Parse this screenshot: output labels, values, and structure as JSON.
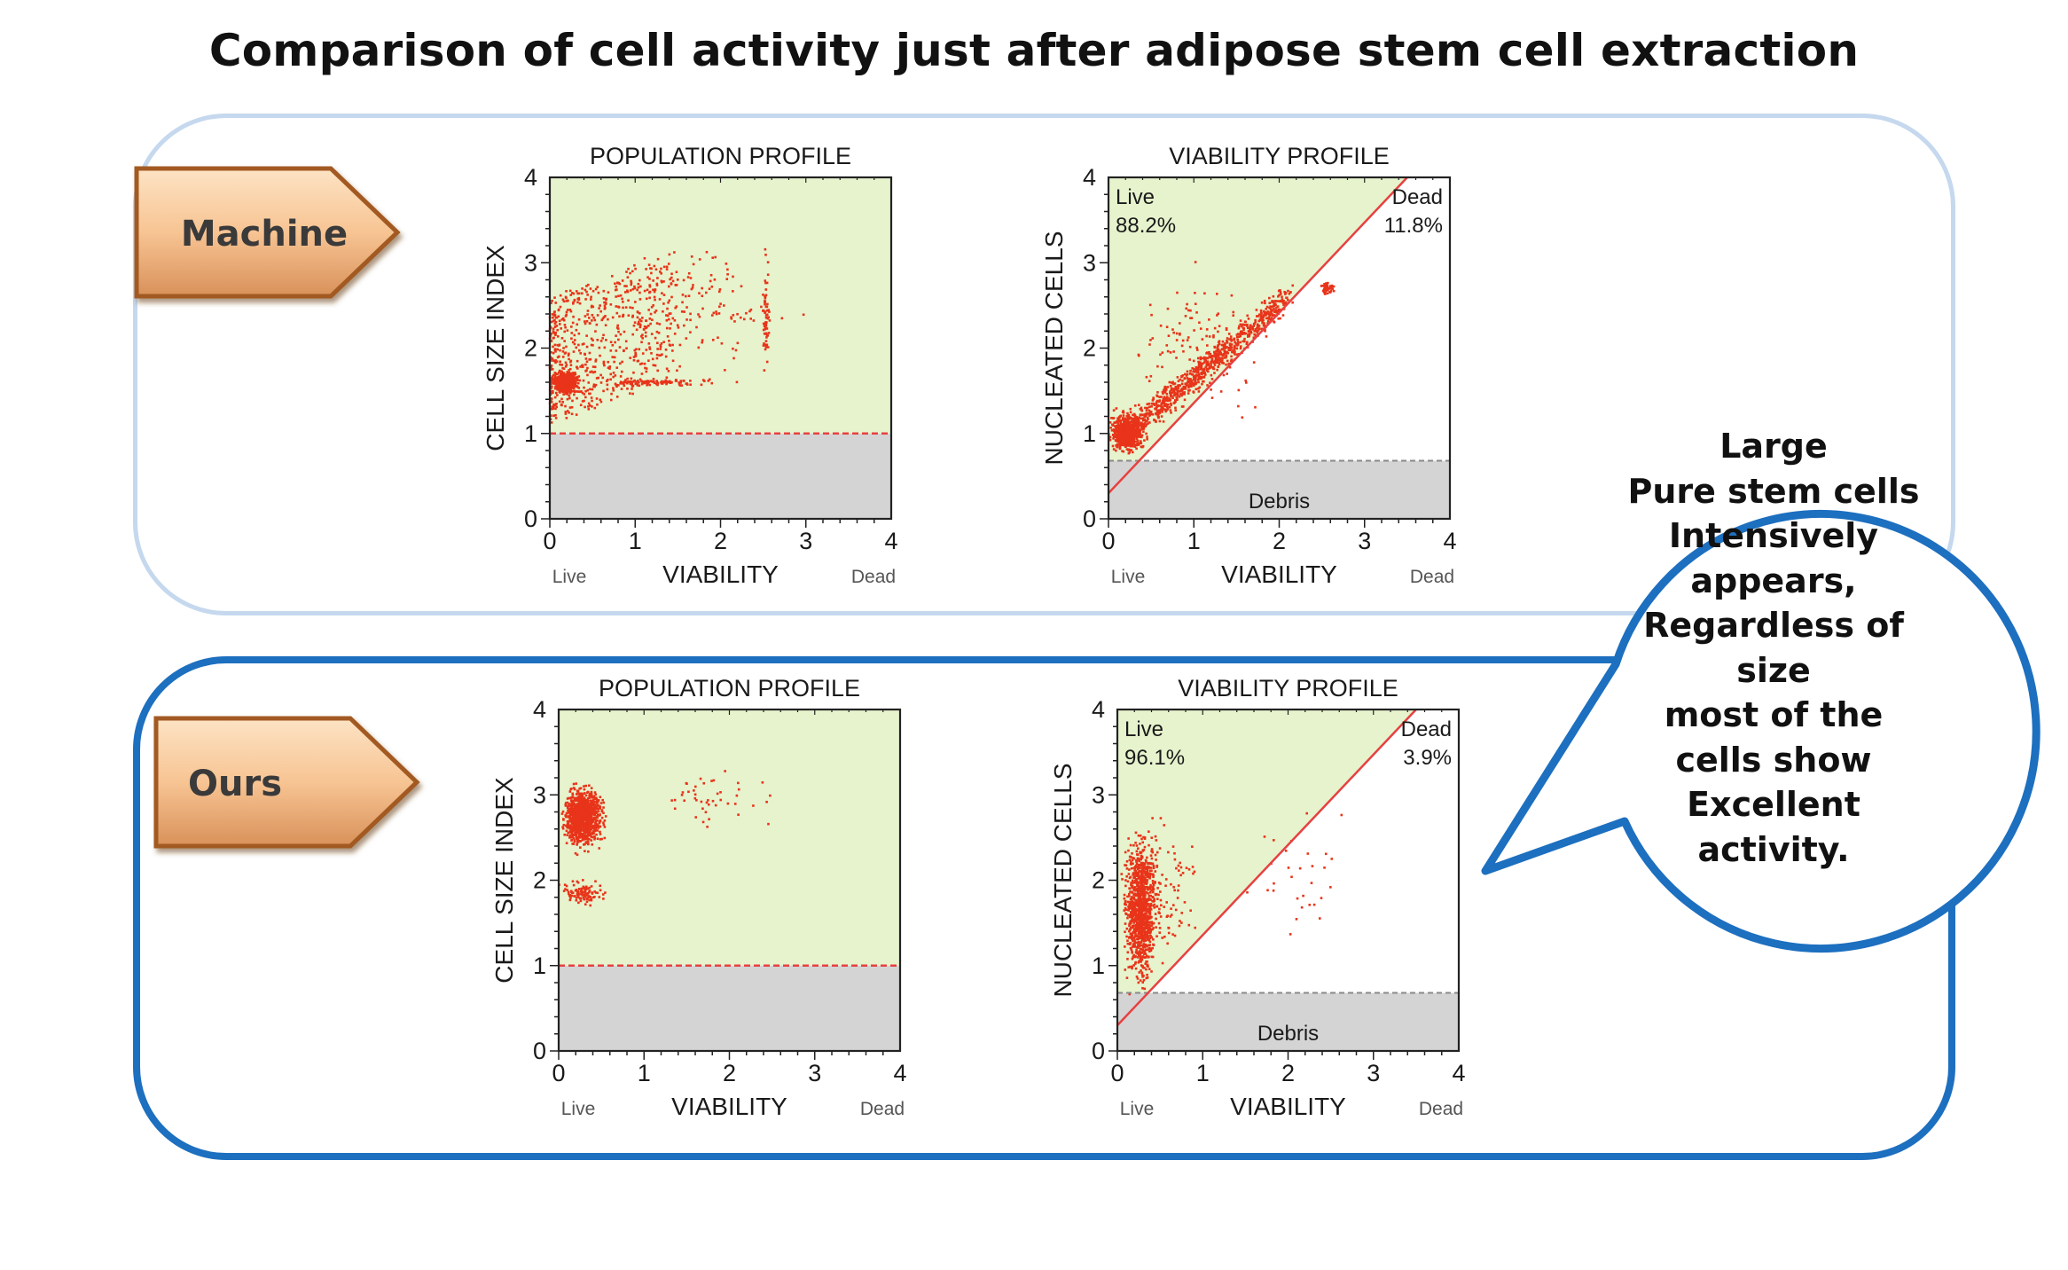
{
  "title": "Comparison of cell activity just after adipose stem cell extraction",
  "colors": {
    "plot_bg": "#e6f3cd",
    "debris_bg": "#d4d4d4",
    "point": "#e8341a",
    "gate_line": "#e84040",
    "bubble_border": "#1d6fbf"
  },
  "rows": [
    {
      "label": "Machine"
    },
    {
      "label": "Ours"
    }
  ],
  "bubble": {
    "lines": [
      "Large",
      "Pure stem cells",
      "Intensively",
      "appears,",
      "Regardless of",
      "size",
      "most of the",
      "cells show",
      "Excellent",
      "activity."
    ]
  },
  "chart_data": [
    {
      "id": "machine-population",
      "type": "scatter",
      "title": "POPULATION PROFILE",
      "xlabel": "VIABILITY",
      "ylabel": "CELL SIZE INDEX",
      "x_end_labels": {
        "left": "Live",
        "right": "Dead"
      },
      "xlim": [
        0,
        4
      ],
      "ylim": [
        0,
        4
      ],
      "xticks": [
        "0",
        "1",
        "2",
        "3",
        "4"
      ],
      "yticks": [
        "0",
        "1",
        "2",
        "3",
        "4"
      ],
      "threshold_y": 1.0,
      "clusters": [
        {
          "x": [
            0.0,
            0.35
          ],
          "y": [
            1.45,
            1.75
          ],
          "n": 700
        },
        {
          "x": [
            0.0,
            1.5
          ],
          "y": [
            1.1,
            3.1
          ],
          "n": 650,
          "trend": 0.45
        },
        {
          "x": [
            0.3,
            2.2
          ],
          "y": [
            1.55,
            1.65
          ],
          "n": 110
        },
        {
          "x": [
            2.48,
            2.58
          ],
          "y": [
            1.7,
            3.0
          ],
          "n": 60
        },
        {
          "x": [
            0.5,
            2.9
          ],
          "y": [
            1.6,
            3.3
          ],
          "n": 120
        }
      ]
    },
    {
      "id": "machine-viability",
      "type": "scatter",
      "title": "VIABILITY PROFILE",
      "xlabel": "VIABILITY",
      "ylabel": "NUCLEATED CELLS",
      "x_end_labels": {
        "left": "Live",
        "right": "Dead"
      },
      "xlim": [
        0,
        4
      ],
      "ylim": [
        0,
        4
      ],
      "xticks": [
        "0",
        "1",
        "2",
        "3",
        "4"
      ],
      "yticks": [
        "0",
        "1",
        "2",
        "3",
        "4"
      ],
      "debris_y": 0.68,
      "gate_line": {
        "x0": 0,
        "y0": 0.3,
        "x1": 3.5,
        "y1": 4.0
      },
      "gates": [
        {
          "name": "Live",
          "percent": "88.2%"
        },
        {
          "name": "Dead",
          "percent": "11.8%"
        },
        {
          "name": "Debris"
        }
      ],
      "clusters": [
        {
          "x": [
            0.0,
            0.45
          ],
          "y": [
            0.75,
            1.3
          ],
          "n": 650
        },
        {
          "x": [
            0.1,
            2.1
          ],
          "y": [
            0.9,
            2.6
          ],
          "n": 900,
          "diag": true
        },
        {
          "x": [
            2.45,
            2.65
          ],
          "y": [
            2.6,
            2.8
          ],
          "n": 40
        },
        {
          "x": [
            0.1,
            2.0
          ],
          "y": [
            1.0,
            3.0
          ],
          "n": 120
        }
      ]
    },
    {
      "id": "ours-population",
      "type": "scatter",
      "title": "POPULATION PROFILE",
      "xlabel": "VIABILITY",
      "ylabel": "CELL SIZE INDEX",
      "x_end_labels": {
        "left": "Live",
        "right": "Dead"
      },
      "xlim": [
        0,
        4
      ],
      "ylim": [
        0,
        4
      ],
      "xticks": [
        "0",
        "1",
        "2",
        "3",
        "4"
      ],
      "yticks": [
        "0",
        "1",
        "2",
        "3",
        "4"
      ],
      "threshold_y": 1.0,
      "clusters": [
        {
          "x": [
            0.02,
            0.55
          ],
          "y": [
            2.35,
            3.15
          ],
          "n": 1100
        },
        {
          "x": [
            0.02,
            0.55
          ],
          "y": [
            1.7,
            2.0
          ],
          "n": 110
        },
        {
          "x": [
            0.6,
            2.9
          ],
          "y": [
            2.5,
            3.3
          ],
          "n": 45
        }
      ]
    },
    {
      "id": "ours-viability",
      "type": "scatter",
      "title": "VIABILITY PROFILE",
      "xlabel": "VIABILITY",
      "ylabel": "NUCLEATED CELLS",
      "x_end_labels": {
        "left": "Live",
        "right": "Dead"
      },
      "xlim": [
        0,
        4
      ],
      "ylim": [
        0,
        4
      ],
      "xticks": [
        "0",
        "1",
        "2",
        "3",
        "4"
      ],
      "yticks": [
        "0",
        "1",
        "2",
        "3",
        "4"
      ],
      "debris_y": 0.68,
      "gate_line": {
        "x0": 0,
        "y0": 0.3,
        "x1": 3.5,
        "y1": 4.0
      },
      "gates": [
        {
          "name": "Live",
          "percent": "96.1%"
        },
        {
          "name": "Dead",
          "percent": "3.9%"
        },
        {
          "name": "Debris"
        }
      ],
      "clusters": [
        {
          "x": [
            0.05,
            0.5
          ],
          "y": [
            0.72,
            2.6
          ],
          "n": 1100
        },
        {
          "x": [
            0.1,
            1.0
          ],
          "y": [
            0.9,
            3.0
          ],
          "n": 90
        },
        {
          "x": [
            1.5,
            2.8
          ],
          "y": [
            1.2,
            2.9
          ],
          "n": 30
        }
      ]
    }
  ]
}
